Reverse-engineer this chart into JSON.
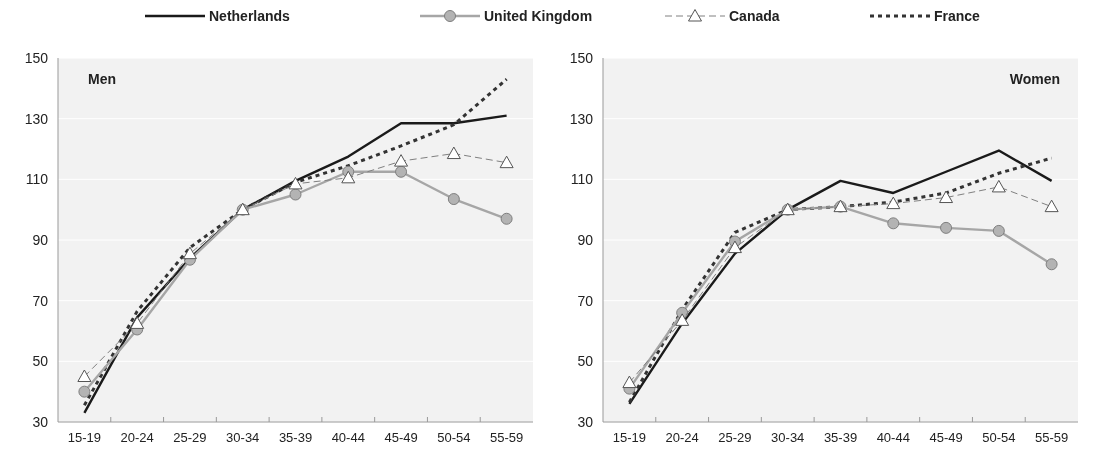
{
  "chart_data": [
    {
      "type": "line",
      "title": "Men",
      "categories": [
        "15-19",
        "20-24",
        "25-29",
        "30-34",
        "35-39",
        "40-44",
        "45-49",
        "50-54",
        "55-59"
      ],
      "ylim": [
        30,
        150
      ],
      "yticks": [
        30,
        50,
        70,
        90,
        110,
        130,
        150
      ],
      "grid": "y",
      "legend": "top",
      "series": [
        {
          "name": "Netherlands",
          "color": "#1a1a1a",
          "marker": "none",
          "line_style": "solid",
          "values": [
            33,
            64.5,
            84,
            100,
            109.5,
            117.5,
            128.5,
            128.5,
            131
          ]
        },
        {
          "name": "United Kingdom",
          "color": "#a6a6a6",
          "marker": "circle",
          "line_style": "solid",
          "values": [
            40,
            60.5,
            83.5,
            100,
            105,
            112.5,
            112.5,
            103.5,
            97
          ]
        },
        {
          "name": "Canada",
          "color": "#808080",
          "marker": "triangle",
          "line_style": "dashed",
          "values": [
            45,
            62.5,
            85.5,
            100,
            108.5,
            110.5,
            116,
            118.5,
            115.5
          ]
        },
        {
          "name": "France",
          "color": "#333333",
          "marker": "none",
          "line_style": "dotted",
          "values": [
            35.5,
            66.5,
            87.5,
            100,
            109,
            114.5,
            121,
            128,
            143
          ]
        }
      ]
    },
    {
      "type": "line",
      "title": "Women",
      "categories": [
        "15-19",
        "20-24",
        "25-29",
        "30-34",
        "35-39",
        "40-44",
        "45-49",
        "50-54",
        "55-59"
      ],
      "ylim": [
        30,
        150
      ],
      "yticks": [
        30,
        50,
        70,
        90,
        110,
        130,
        150
      ],
      "grid": "y",
      "series": [
        {
          "color": "#1a1a1a",
          "marker": "none",
          "line_style": "solid",
          "values": [
            36,
            62.5,
            85.5,
            100,
            109.5,
            105.5,
            112.5,
            119.5,
            109.5
          ]
        },
        {
          "color": "#a6a6a6",
          "marker": "circle",
          "line_style": "solid",
          "values": [
            41,
            66,
            89.5,
            100,
            101,
            95.5,
            94,
            93,
            82
          ]
        },
        {
          "color": "#808080",
          "marker": "triangle",
          "line_style": "dashed",
          "values": [
            43,
            63.5,
            87.5,
            100,
            101,
            102,
            104,
            107.5,
            101
          ]
        },
        {
          "color": "#333333",
          "marker": "none",
          "line_style": "dotted",
          "values": [
            36.5,
            67,
            92.5,
            100,
            101,
            102.5,
            105.5,
            112,
            117
          ]
        }
      ]
    }
  ]
}
